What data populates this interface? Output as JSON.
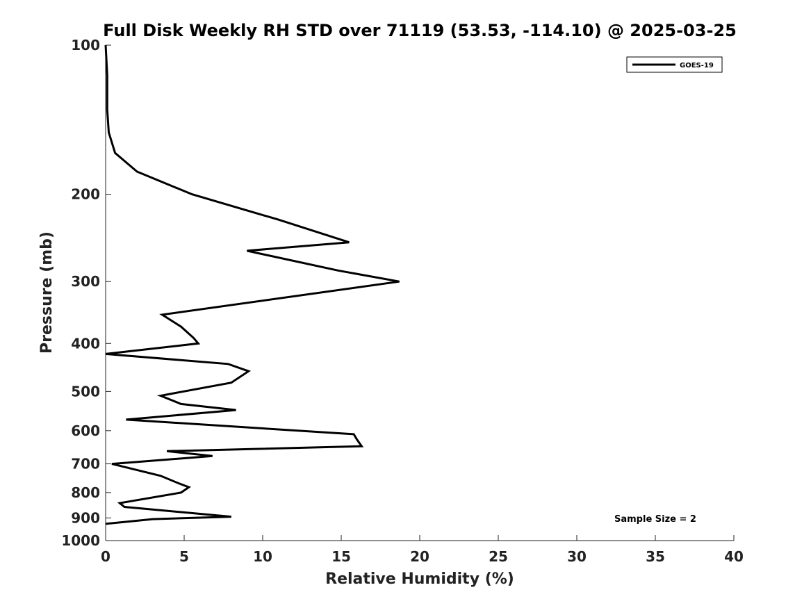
{
  "chart_data": {
    "type": "line",
    "title": "Full Disk Weekly RH STD over 71119 (53.53, -114.10) @ 2025-03-25",
    "xlabel": "Relative Humidity (%)",
    "ylabel": "Pressure (mb)",
    "xlim": [
      0,
      40
    ],
    "ylim": [
      100,
      1000
    ],
    "y_scale": "log",
    "y_reversed": true,
    "x_ticks": [
      "0",
      "5",
      "10",
      "15",
      "20",
      "25",
      "30",
      "35",
      "40"
    ],
    "y_ticks": [
      "100",
      "200",
      "300",
      "400",
      "500",
      "600",
      "700",
      "800",
      "900",
      "1000"
    ],
    "grid": false,
    "legend_position": "top-right",
    "annotation": "Sample Size = 2",
    "series": [
      {
        "name": "GOES-19",
        "color": "#000000",
        "points": [
          [
            0.0,
            100
          ],
          [
            0.1,
            115
          ],
          [
            0.1,
            135
          ],
          [
            0.2,
            150
          ],
          [
            0.6,
            165
          ],
          [
            2.0,
            180
          ],
          [
            5.5,
            200
          ],
          [
            11.0,
            225
          ],
          [
            15.5,
            250
          ],
          [
            9.0,
            260
          ],
          [
            14.8,
            285
          ],
          [
            18.7,
            300
          ],
          [
            3.6,
            350
          ],
          [
            4.8,
            370
          ],
          [
            5.6,
            390
          ],
          [
            5.9,
            400
          ],
          [
            0.0,
            420
          ],
          [
            7.8,
            440
          ],
          [
            9.1,
            455
          ],
          [
            8.0,
            480
          ],
          [
            3.5,
            510
          ],
          [
            4.8,
            530
          ],
          [
            8.3,
            545
          ],
          [
            1.3,
            570
          ],
          [
            15.8,
            610
          ],
          [
            16.0,
            625
          ],
          [
            16.3,
            645
          ],
          [
            3.9,
            660
          ],
          [
            6.8,
            675
          ],
          [
            0.4,
            700
          ],
          [
            3.5,
            740
          ],
          [
            4.6,
            765
          ],
          [
            5.3,
            780
          ],
          [
            4.8,
            800
          ],
          [
            0.9,
            840
          ],
          [
            1.2,
            855
          ],
          [
            8.0,
            895
          ],
          [
            3.0,
            905
          ],
          [
            0.0,
            925
          ]
        ]
      }
    ]
  }
}
